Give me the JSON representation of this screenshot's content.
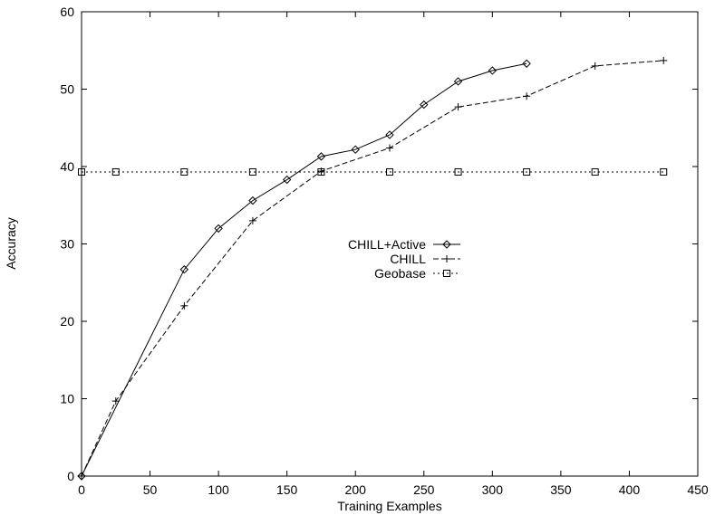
{
  "chart_data": {
    "type": "line",
    "title": "",
    "xlabel": "Training Examples",
    "ylabel": "Accuracy",
    "xlim": [
      0,
      450
    ],
    "ylim": [
      0,
      60
    ],
    "xticks": [
      0,
      50,
      100,
      150,
      200,
      250,
      300,
      350,
      400,
      450
    ],
    "yticks": [
      0,
      10,
      20,
      30,
      40,
      50,
      60
    ],
    "grid": false,
    "legend_position": "center-right",
    "series": [
      {
        "name": "CHILL+Active",
        "marker": "diamond",
        "line_style": "solid",
        "color": "#000000",
        "x": [
          0,
          75,
          100,
          125,
          150,
          175,
          200,
          225,
          250,
          275,
          300,
          325
        ],
        "y": [
          0,
          26.7,
          32.0,
          35.6,
          38.3,
          41.3,
          42.2,
          44.1,
          48.0,
          51.0,
          52.4,
          53.3
        ]
      },
      {
        "name": "CHILL",
        "marker": "plus",
        "line_style": "dashed",
        "color": "#000000",
        "x": [
          0,
          25,
          75,
          125,
          175,
          225,
          275,
          325,
          375,
          425
        ],
        "y": [
          0,
          9.7,
          22.0,
          33.0,
          39.4,
          42.4,
          47.7,
          49.1,
          53.0,
          53.7
        ]
      },
      {
        "name": "Geobase",
        "marker": "square",
        "line_style": "dotted",
        "color": "#000000",
        "x": [
          0,
          25,
          75,
          125,
          175,
          225,
          275,
          325,
          375,
          425
        ],
        "y": [
          39.3,
          39.3,
          39.3,
          39.3,
          39.3,
          39.3,
          39.3,
          39.3,
          39.3,
          39.3
        ]
      }
    ]
  }
}
